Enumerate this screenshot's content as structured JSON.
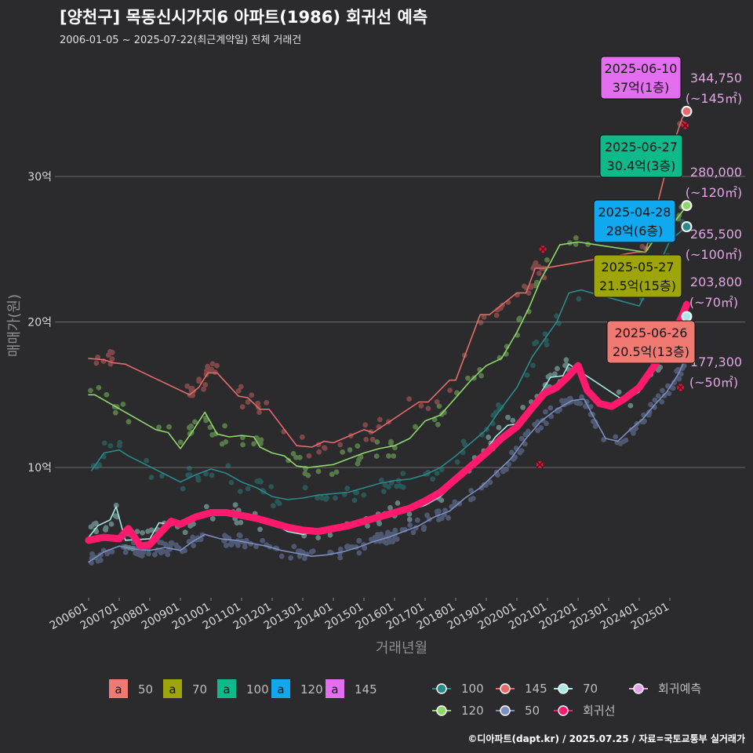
{
  "title": "[양천구] 목동신시가지6 아파트(1986) 회귀선 예측",
  "subtitle": "2006-01-05 ~ 2025-07-22(최근계약일) 전체 거래건",
  "caption": "©디아파트(dapt.kr) / 2025.07.25 / 자료=국토교통부 실거래가",
  "chart_data": {
    "type": "line",
    "xlabel": "거래년월",
    "ylabel": "매매가(원)",
    "x_ticks": [
      "200601",
      "200701",
      "200801",
      "200901",
      "201001",
      "201101",
      "201201",
      "201301",
      "201401",
      "201501",
      "201601",
      "201701",
      "201801",
      "201901",
      "202001",
      "202101",
      "202201",
      "202301",
      "202401",
      "202501"
    ],
    "y_ticks": [
      {
        "v": 10,
        "label": "10억"
      },
      {
        "v": 20,
        "label": "20억"
      },
      {
        "v": 30,
        "label": "30억"
      }
    ],
    "xlim": [
      2006.0,
      2025.9
    ],
    "ylim": [
      0,
      37
    ],
    "grid": true,
    "colors": {
      "area50": "#7b8fc4",
      "area70": "#a8e8e8",
      "area100": "#2a8a8a",
      "area120": "#8ed86a",
      "area145": "#e86a6a",
      "regression": "#ff1a6e",
      "predict": "#e2a4e6"
    },
    "series": [
      {
        "name": "50",
        "color": "#7b8fc4",
        "points": [
          [
            2006.0,
            3.5
          ],
          [
            2006.5,
            4.2
          ],
          [
            2007.0,
            4.6
          ],
          [
            2007.5,
            4.4
          ],
          [
            2008.0,
            4.3
          ],
          [
            2008.5,
            4.5
          ],
          [
            2009.0,
            4.3
          ],
          [
            2009.4,
            4.9
          ],
          [
            2009.8,
            5.4
          ],
          [
            2010.3,
            5.1
          ],
          [
            2010.8,
            5.0
          ],
          [
            2011.3,
            4.8
          ],
          [
            2011.8,
            4.6
          ],
          [
            2012.3,
            4.3
          ],
          [
            2012.8,
            4.1
          ],
          [
            2013.3,
            3.9
          ],
          [
            2013.8,
            4.0
          ],
          [
            2014.3,
            4.2
          ],
          [
            2014.8,
            4.5
          ],
          [
            2015.3,
            4.9
          ],
          [
            2015.8,
            5.2
          ],
          [
            2016.3,
            5.6
          ],
          [
            2016.8,
            6.0
          ],
          [
            2017.3,
            6.6
          ],
          [
            2017.8,
            7.0
          ],
          [
            2018.3,
            7.9
          ],
          [
            2018.8,
            8.6
          ],
          [
            2019.3,
            9.6
          ],
          [
            2019.8,
            10.6
          ],
          [
            2020.3,
            12.0
          ],
          [
            2020.8,
            13.2
          ],
          [
            2021.3,
            14.0
          ],
          [
            2021.8,
            14.6
          ],
          [
            2022.2,
            14.7
          ],
          [
            2022.5,
            13.5
          ],
          [
            2022.9,
            12.0
          ],
          [
            2023.3,
            11.8
          ],
          [
            2023.7,
            12.6
          ],
          [
            2024.1,
            13.3
          ],
          [
            2024.5,
            14.3
          ],
          [
            2024.9,
            15.2
          ],
          [
            2025.3,
            16.5
          ],
          [
            2025.55,
            17.73
          ]
        ]
      },
      {
        "name": "70",
        "color": "#a8e8e8",
        "points": [
          [
            2006.0,
            5.2
          ],
          [
            2006.3,
            6.0
          ],
          [
            2006.7,
            6.4
          ],
          [
            2006.9,
            7.3
          ],
          [
            2007.2,
            5.0
          ],
          [
            2008.0,
            5.1
          ],
          [
            2008.3,
            6.2
          ],
          [
            2009.0,
            6.0
          ],
          [
            2009.5,
            6.5
          ],
          [
            2010.0,
            6.8
          ],
          [
            2010.5,
            6.8
          ],
          [
            2011.0,
            6.7
          ],
          [
            2011.5,
            6.5
          ],
          [
            2012.0,
            6.2
          ],
          [
            2012.5,
            5.6
          ],
          [
            2013.0,
            5.4
          ],
          [
            2013.5,
            5.6
          ],
          [
            2014.0,
            5.7
          ],
          [
            2014.5,
            6.0
          ],
          [
            2015.0,
            6.3
          ],
          [
            2015.5,
            6.6
          ],
          [
            2016.0,
            6.9
          ],
          [
            2016.5,
            7.1
          ],
          [
            2017.0,
            7.4
          ],
          [
            2017.5,
            8.0
          ],
          [
            2018.0,
            9.0
          ],
          [
            2018.5,
            10.0
          ],
          [
            2019.0,
            11.2
          ],
          [
            2019.3,
            12.1
          ],
          [
            2019.7,
            12.9
          ],
          [
            2020.0,
            13.0
          ],
          [
            2020.4,
            14.0
          ],
          [
            2020.8,
            15.2
          ],
          [
            2021.1,
            16.2
          ],
          [
            2021.5,
            16.3
          ],
          [
            2021.7,
            17.1
          ],
          [
            2023.5,
            14.6
          ],
          [
            2024.0,
            15.2
          ],
          [
            2024.3,
            16.5
          ],
          [
            2024.7,
            17.5
          ],
          [
            2025.1,
            18.8
          ],
          [
            2025.4,
            20.0
          ],
          [
            2025.55,
            20.38
          ]
        ]
      },
      {
        "name": "100",
        "color": "#2a8a8a",
        "points": [
          [
            2006.1,
            9.8
          ],
          [
            2006.5,
            11.0
          ],
          [
            2007.0,
            11.2
          ],
          [
            2007.3,
            10.8
          ],
          [
            2009.0,
            9.0
          ],
          [
            2009.5,
            9.5
          ],
          [
            2010.0,
            9.9
          ],
          [
            2010.5,
            9.6
          ],
          [
            2011.0,
            9.0
          ],
          [
            2011.5,
            8.6
          ],
          [
            2012.0,
            8.0
          ],
          [
            2012.5,
            7.8
          ],
          [
            2013.0,
            7.9
          ],
          [
            2013.5,
            8.1
          ],
          [
            2014.0,
            8.2
          ],
          [
            2014.5,
            8.3
          ],
          [
            2015.0,
            8.6
          ],
          [
            2015.5,
            8.9
          ],
          [
            2016.0,
            9.1
          ],
          [
            2016.5,
            9.2
          ],
          [
            2017.0,
            9.5
          ],
          [
            2017.5,
            10.0
          ],
          [
            2018.0,
            10.8
          ],
          [
            2018.5,
            11.7
          ],
          [
            2019.0,
            12.6
          ],
          [
            2019.5,
            14.1
          ],
          [
            2020.0,
            15.5
          ],
          [
            2020.5,
            17.6
          ],
          [
            2020.9,
            18.8
          ],
          [
            2021.3,
            20.0
          ],
          [
            2021.7,
            22.0
          ],
          [
            2022.1,
            22.2
          ],
          [
            2024.0,
            21.1
          ],
          [
            2024.5,
            23.2
          ],
          [
            2025.0,
            25.6
          ],
          [
            2025.55,
            26.55
          ]
        ]
      },
      {
        "name": "120",
        "color": "#8ed86a",
        "points": [
          [
            2006.0,
            15.0
          ],
          [
            2006.2,
            15.0
          ],
          [
            2008.2,
            12.6
          ],
          [
            2008.6,
            12.4
          ],
          [
            2009.0,
            11.3
          ],
          [
            2009.4,
            12.5
          ],
          [
            2009.8,
            13.8
          ],
          [
            2010.2,
            12.3
          ],
          [
            2010.6,
            12.1
          ],
          [
            2011.0,
            12.2
          ],
          [
            2011.4,
            12.1
          ],
          [
            2011.6,
            11.4
          ],
          [
            2012.0,
            11.0
          ],
          [
            2012.4,
            10.8
          ],
          [
            2012.8,
            10.1
          ],
          [
            2013.2,
            10.0
          ],
          [
            2013.6,
            10.1
          ],
          [
            2014.0,
            10.2
          ],
          [
            2014.5,
            10.6
          ],
          [
            2015.0,
            11.0
          ],
          [
            2015.5,
            11.3
          ],
          [
            2016.0,
            11.5
          ],
          [
            2016.5,
            12.0
          ],
          [
            2017.0,
            13.2
          ],
          [
            2017.5,
            13.6
          ],
          [
            2018.0,
            14.8
          ],
          [
            2018.5,
            16.0
          ],
          [
            2019.0,
            17.0
          ],
          [
            2019.5,
            17.5
          ],
          [
            2020.0,
            19.3
          ],
          [
            2020.4,
            21.0
          ],
          [
            2020.8,
            23.0
          ],
          [
            2021.1,
            24.1
          ],
          [
            2021.4,
            25.3
          ],
          [
            2022.0,
            25.5
          ],
          [
            2024.2,
            24.8
          ],
          [
            2024.7,
            26.3
          ],
          [
            2025.2,
            27.0
          ],
          [
            2025.55,
            28.0
          ]
        ]
      },
      {
        "name": "145",
        "color": "#e86a6a",
        "points": [
          [
            2006.0,
            17.5
          ],
          [
            2006.5,
            17.4
          ],
          [
            2006.8,
            17.2
          ],
          [
            2007.2,
            17.1
          ],
          [
            2009.3,
            15.0
          ],
          [
            2009.6,
            15.5
          ],
          [
            2009.9,
            16.5
          ],
          [
            2010.2,
            16.5
          ],
          [
            2010.9,
            14.9
          ],
          [
            2011.2,
            14.8
          ],
          [
            2011.6,
            14.0
          ],
          [
            2011.9,
            14.0
          ],
          [
            2012.8,
            11.5
          ],
          [
            2013.3,
            11.4
          ],
          [
            2013.7,
            11.8
          ],
          [
            2014.0,
            11.7
          ],
          [
            2015.0,
            12.6
          ],
          [
            2015.3,
            12.4
          ],
          [
            2016.8,
            14.5
          ],
          [
            2017.1,
            14.5
          ],
          [
            2017.8,
            16.0
          ],
          [
            2018.0,
            16.0
          ],
          [
            2018.8,
            20.5
          ],
          [
            2019.1,
            20.5
          ],
          [
            2020.0,
            22.0
          ],
          [
            2020.3,
            22.0
          ],
          [
            2020.6,
            23.7
          ],
          [
            2020.9,
            23.7
          ],
          [
            2023.9,
            24.8
          ],
          [
            2024.2,
            24.8
          ],
          [
            2025.0,
            31.5
          ],
          [
            2025.4,
            34.0
          ],
          [
            2025.55,
            34.48
          ]
        ]
      },
      {
        "name": "회귀선",
        "color": "#ff1a6e",
        "points": [
          [
            2006.0,
            5.0
          ],
          [
            2006.5,
            5.2
          ],
          [
            2007.0,
            5.1
          ],
          [
            2007.3,
            5.8
          ],
          [
            2007.7,
            4.6
          ],
          [
            2008.0,
            4.7
          ],
          [
            2008.3,
            5.4
          ],
          [
            2008.7,
            6.3
          ],
          [
            2009.0,
            6.1
          ],
          [
            2009.5,
            6.6
          ],
          [
            2010.0,
            6.9
          ],
          [
            2010.5,
            6.9
          ],
          [
            2011.0,
            6.7
          ],
          [
            2011.5,
            6.5
          ],
          [
            2012.0,
            6.2
          ],
          [
            2012.5,
            5.9
          ],
          [
            2013.0,
            5.7
          ],
          [
            2013.5,
            5.6
          ],
          [
            2014.0,
            5.8
          ],
          [
            2014.5,
            6.0
          ],
          [
            2015.0,
            6.3
          ],
          [
            2015.5,
            6.6
          ],
          [
            2016.0,
            6.9
          ],
          [
            2016.5,
            7.2
          ],
          [
            2017.0,
            7.7
          ],
          [
            2017.5,
            8.3
          ],
          [
            2018.0,
            9.2
          ],
          [
            2018.5,
            10.1
          ],
          [
            2019.0,
            11.0
          ],
          [
            2019.5,
            12.0
          ],
          [
            2020.0,
            12.8
          ],
          [
            2020.5,
            14.1
          ],
          [
            2020.9,
            15.1
          ],
          [
            2021.3,
            15.5
          ],
          [
            2021.7,
            16.3
          ],
          [
            2022.0,
            17.0
          ],
          [
            2022.3,
            15.3
          ],
          [
            2022.7,
            14.4
          ],
          [
            2023.1,
            14.2
          ],
          [
            2023.5,
            14.7
          ],
          [
            2024.0,
            15.5
          ],
          [
            2024.5,
            17.0
          ],
          [
            2025.0,
            18.8
          ],
          [
            2025.4,
            20.4
          ],
          [
            2025.55,
            21.2
          ]
        ]
      }
    ],
    "annotations": [
      {
        "date": "2025-06-10",
        "text": "37억(1층)",
        "bg": "#e36ff0",
        "x": 2025.45,
        "y": 34.48
      },
      {
        "date": "2025-06-27",
        "text": "30.4억(3층)",
        "bg": "#10b98a",
        "x": 2025.5,
        "y": 28.0
      },
      {
        "date": "2025-04-28",
        "text": "28억(6층)",
        "bg": "#10a8ee",
        "x": 2025.4,
        "y": 26.55
      },
      {
        "date": "2025-05-27",
        "text": "21.5억(15층)",
        "bg": "#9ea50a",
        "x": 2025.45,
        "y": 21.5
      },
      {
        "date": "2025-06-26",
        "text": "20.5억(13층)",
        "bg": "#f07a72",
        "x": 2025.5,
        "y": 20.38
      }
    ],
    "predictions": [
      {
        "value": "344,750",
        "area": "(~145㎡)",
        "y": 34.48,
        "color": "#e86a6a"
      },
      {
        "value": "280,000",
        "area": "(~120㎡)",
        "y": 28.0,
        "color": "#8ed86a"
      },
      {
        "value": "265,500",
        "area": "(~100㎡)",
        "y": 26.55,
        "color": "#2a8a8a"
      },
      {
        "value": "203,800",
        "area": "(~70㎡)",
        "y": 20.38,
        "color": "#a8e8e8"
      },
      {
        "value": "177,300",
        "area": "(~50㎡)",
        "y": 17.73,
        "color": "#7b8fc4"
      }
    ],
    "legend_box": [
      {
        "label": "50",
        "color": "#f07a72"
      },
      {
        "label": "70",
        "color": "#9ea50a"
      },
      {
        "label": "100",
        "color": "#10b98a"
      },
      {
        "label": "120",
        "color": "#10a8ee"
      },
      {
        "label": "145",
        "color": "#e36ff0"
      }
    ],
    "legend_line": [
      {
        "label": "100",
        "color": "#2a8a8a"
      },
      {
        "label": "145",
        "color": "#e86a6a"
      },
      {
        "label": "70",
        "color": "#a8e8e8"
      },
      {
        "label": "회귀예측",
        "color": "#e2a4e6"
      },
      {
        "label": "120",
        "color": "#8ed86a"
      },
      {
        "label": "50",
        "color": "#7b8fc4"
      },
      {
        "label": "회귀선",
        "color": "#ff1a6e"
      }
    ],
    "box_glyph": "a"
  }
}
